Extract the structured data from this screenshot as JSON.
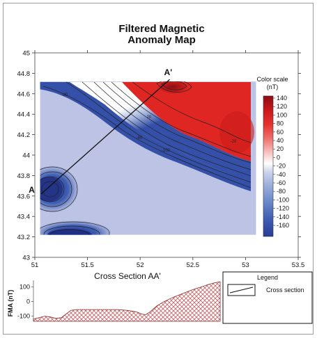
{
  "chart_data": [
    {
      "type": "heatmap",
      "title_line1": "Filtered Magnetic",
      "title_line2": "Anomaly Map",
      "xlim": [
        51,
        53.5
      ],
      "ylim": [
        43,
        45
      ],
      "x_ticks": [
        "51",
        "51.5",
        "52",
        "52.5",
        "53",
        "53.5"
      ],
      "y_ticks": [
        "43",
        "43.2",
        "43.4",
        "43.6",
        "43.8",
        "44",
        "44.2",
        "44.4",
        "44.6",
        "44.8",
        "45"
      ],
      "data_extent": {
        "x": [
          51.05,
          53.1
        ],
        "y": [
          43.22,
          44.72
        ]
      },
      "grid": false,
      "section_line": {
        "start_label": "A",
        "end_label": "A'",
        "start": {
          "x": 51.06,
          "y": 43.62
        },
        "end": {
          "x": 52.28,
          "y": 44.74
        }
      },
      "contour_labels": [
        "20",
        "-20",
        "-60",
        "-80",
        "-100"
      ],
      "colorbar": {
        "title_line1": "Color scale",
        "title_line2": "(nT)",
        "ticks": [
          "140",
          "120",
          "100",
          "80",
          "60",
          "40",
          "20",
          "0",
          "-20",
          "-40",
          "-60",
          "-80",
          "-100",
          "-120",
          "-140",
          "-160"
        ],
        "colors": [
          "#2a3d97",
          "#3f5fb3",
          "#6f8dcc",
          "#a3b4dd",
          "#cdd5ec",
          "#ffffff",
          "#f6c0bf",
          "#ef6f6b",
          "#e3322e",
          "#c9191b",
          "#8a0f14"
        ]
      },
      "colors": {
        "background": "#bcc3e5",
        "high": "#e02622",
        "low": "#2a3d97",
        "section_line": "#111111"
      }
    },
    {
      "type": "area",
      "title": "Cross Section AA'",
      "ylabel": "FMA (nT)",
      "y_ticks": [
        "100",
        "0",
        "-100"
      ],
      "ylim": [
        -135,
        145
      ],
      "fill_pattern": "crosshatch",
      "fill_color": "#c65e5e",
      "x": [
        0,
        0.03,
        0.06,
        0.09,
        0.12,
        0.15,
        0.17,
        0.2,
        0.23,
        0.26,
        0.3,
        0.35,
        0.4,
        0.45,
        0.5,
        0.55,
        0.58,
        0.6,
        0.62,
        0.66,
        0.7,
        0.75,
        0.8,
        0.85,
        0.9,
        0.94,
        0.97,
        1.0
      ],
      "values": [
        -120,
        -110,
        -100,
        -105,
        -115,
        -110,
        -90,
        -60,
        -55,
        -55,
        -55,
        -55,
        -55,
        -55,
        -60,
        -70,
        -85,
        -90,
        -75,
        -30,
        0,
        30,
        55,
        80,
        100,
        118,
        128,
        135
      ]
    }
  ],
  "legend": {
    "title": "Legend",
    "items": [
      {
        "label": "Cross section"
      }
    ]
  }
}
